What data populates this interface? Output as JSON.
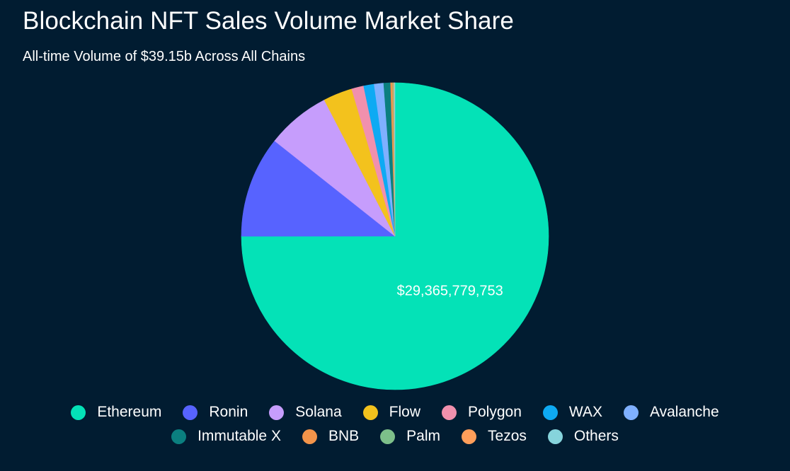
{
  "chart_data": {
    "type": "pie",
    "title": "Blockchain NFT Sales Volume Market Share",
    "subtitle": "All-time Volume of $39.15b Across All Chains",
    "slices": [
      {
        "name": "Ethereum",
        "value": 29365779753,
        "color": "#04e2b7",
        "label": "$29,365,779,753"
      },
      {
        "name": "Ronin",
        "value": 4180000000,
        "color": "#5763ff"
      },
      {
        "name": "Solana",
        "value": 2630000000,
        "color": "#c69dfc"
      },
      {
        "name": "Flow",
        "value": 1200000000,
        "color": "#f3c21d"
      },
      {
        "name": "Polygon",
        "value": 500000000,
        "color": "#f190ad"
      },
      {
        "name": "WAX",
        "value": 430000000,
        "color": "#0eaaf3"
      },
      {
        "name": "Avalanche",
        "value": 390000000,
        "color": "#7fb0ff"
      },
      {
        "name": "Immutable X",
        "value": 280000000,
        "color": "#0b7f7f"
      },
      {
        "name": "BNB",
        "value": 90000000,
        "color": "#f3944a"
      },
      {
        "name": "Palm",
        "value": 30000000,
        "color": "#7dbf8a"
      },
      {
        "name": "Tezos",
        "value": 30000000,
        "color": "#ff9e5a"
      },
      {
        "name": "Others",
        "value": 30000000,
        "color": "#86d4dc"
      }
    ],
    "legend_position": "bottom"
  }
}
